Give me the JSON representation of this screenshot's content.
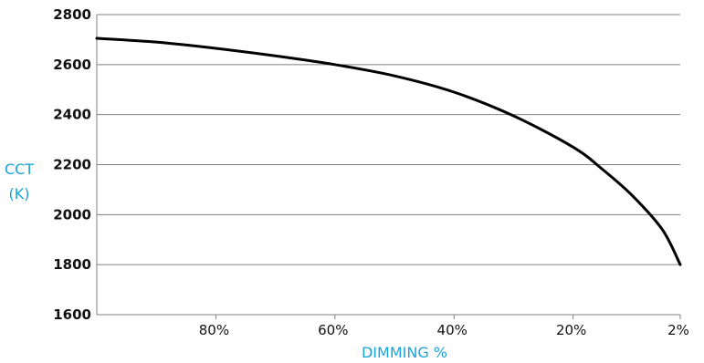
{
  "chart_data": {
    "type": "line",
    "title": "",
    "xlabel": "DIMMING %",
    "ylabel_lines": [
      "CCT",
      "(K)"
    ],
    "x_tick_labels": [
      "80%",
      "60%",
      "40%",
      "20%",
      "2%"
    ],
    "x_tick_values": [
      80,
      60,
      40,
      20,
      2
    ],
    "x_range": [
      100,
      2
    ],
    "y_tick_labels": [
      "1600",
      "1800",
      "2000",
      "2200",
      "2400",
      "2600",
      "2800"
    ],
    "y_tick_values": [
      1600,
      1800,
      2000,
      2200,
      2400,
      2600,
      2800
    ],
    "ylim": [
      1600,
      2800
    ],
    "grid": "horizontal",
    "legend": "none",
    "series": [
      {
        "x": [
          100,
          90,
          80,
          70,
          60,
          50,
          40,
          30,
          20,
          15,
          10,
          5,
          2
        ],
        "y": [
          2705,
          2690,
          2665,
          2635,
          2600,
          2555,
          2490,
          2395,
          2270,
          2180,
          2075,
          1940,
          1800
        ]
      }
    ],
    "colors": {
      "line": "#000000",
      "grid": "#808080",
      "axis_label": "#1aa3d6"
    }
  }
}
